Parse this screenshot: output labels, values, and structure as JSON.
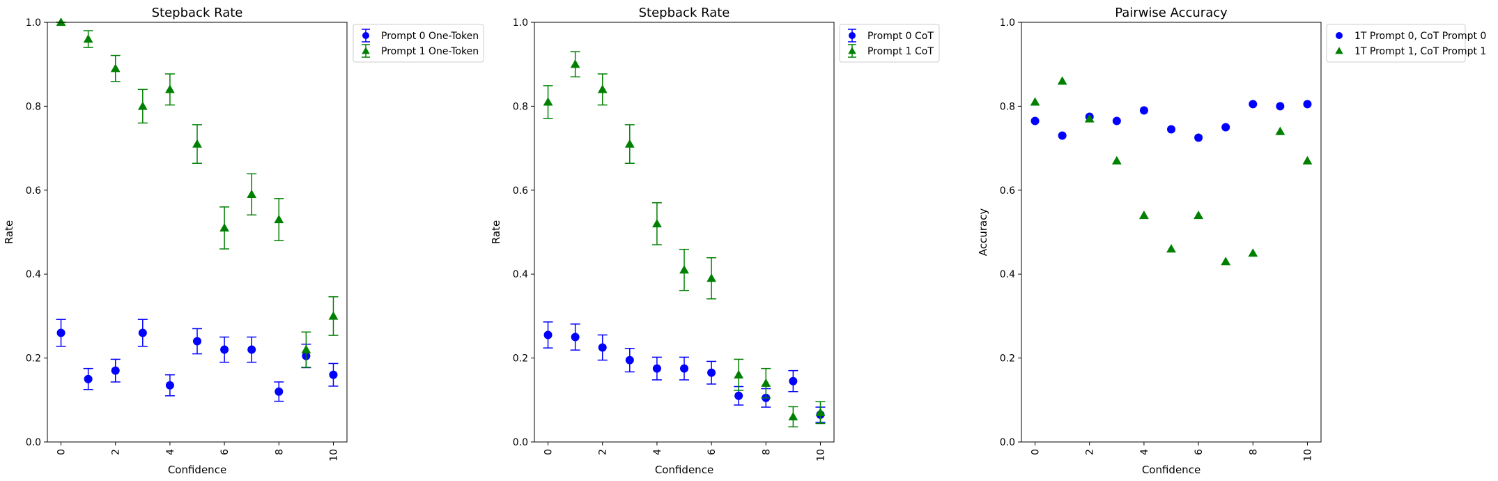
{
  "chart_data": [
    {
      "type": "scatter",
      "title": "Stepback Rate",
      "xlabel": "Confidence",
      "ylabel": "Rate",
      "xlim": [
        -0.5,
        10.5
      ],
      "ylim": [
        0,
        1
      ],
      "xticks": [
        0,
        2,
        4,
        6,
        8,
        10
      ],
      "yticks": [
        0.0,
        0.2,
        0.4,
        0.6,
        0.8,
        1.0
      ],
      "grid": false,
      "legend_position": "outside upper right",
      "series": [
        {
          "name": "Prompt 0 One-Token",
          "color": "#0000ff",
          "marker": "circle",
          "x": [
            0,
            1,
            2,
            3,
            4,
            5,
            6,
            7,
            8,
            9,
            10
          ],
          "y": [
            0.26,
            0.15,
            0.17,
            0.26,
            0.135,
            0.24,
            0.22,
            0.22,
            0.12,
            0.205,
            0.16
          ],
          "yerr": [
            0.032,
            0.025,
            0.027,
            0.032,
            0.025,
            0.03,
            0.03,
            0.03,
            0.023,
            0.028,
            0.027
          ]
        },
        {
          "name": "Prompt 1 One-Token",
          "color": "#008000",
          "marker": "triangle",
          "x": [
            0,
            1,
            2,
            3,
            4,
            5,
            6,
            7,
            8,
            9,
            10
          ],
          "y": [
            1.0,
            0.96,
            0.89,
            0.8,
            0.84,
            0.71,
            0.51,
            0.59,
            0.53,
            0.22,
            0.3
          ],
          "yerr": [
            0.0,
            0.02,
            0.031,
            0.04,
            0.037,
            0.046,
            0.05,
            0.049,
            0.05,
            0.042,
            0.046
          ]
        }
      ]
    },
    {
      "type": "scatter",
      "title": "Stepback Rate",
      "xlabel": "Confidence",
      "ylabel": "Rate",
      "xlim": [
        -0.5,
        10.5
      ],
      "ylim": [
        0,
        1
      ],
      "xticks": [
        0,
        2,
        4,
        6,
        8,
        10
      ],
      "yticks": [
        0.0,
        0.2,
        0.4,
        0.6,
        0.8,
        1.0
      ],
      "grid": false,
      "legend_position": "outside upper right",
      "series": [
        {
          "name": "Prompt 0 CoT",
          "color": "#0000ff",
          "marker": "circle",
          "x": [
            0,
            1,
            2,
            3,
            4,
            5,
            6,
            7,
            8,
            9,
            10
          ],
          "y": [
            0.255,
            0.25,
            0.225,
            0.195,
            0.175,
            0.175,
            0.165,
            0.11,
            0.105,
            0.145,
            0.065
          ],
          "yerr": [
            0.031,
            0.031,
            0.03,
            0.028,
            0.027,
            0.027,
            0.027,
            0.022,
            0.022,
            0.025,
            0.018
          ]
        },
        {
          "name": "Prompt 1 CoT",
          "color": "#008000",
          "marker": "triangle",
          "x": [
            0,
            1,
            2,
            3,
            4,
            5,
            6,
            7,
            8,
            9,
            10
          ],
          "y": [
            0.81,
            0.9,
            0.84,
            0.71,
            0.52,
            0.41,
            0.39,
            0.16,
            0.14,
            0.06,
            0.07
          ],
          "yerr": [
            0.039,
            0.03,
            0.037,
            0.046,
            0.05,
            0.049,
            0.049,
            0.037,
            0.035,
            0.024,
            0.026
          ]
        }
      ]
    },
    {
      "type": "scatter",
      "title": "Pairwise Accuracy",
      "xlabel": "Confidence",
      "ylabel": "Accuracy",
      "xlim": [
        -0.5,
        10.5
      ],
      "ylim": [
        0,
        1
      ],
      "xticks": [
        0,
        2,
        4,
        6,
        8,
        10
      ],
      "yticks": [
        0.0,
        0.2,
        0.4,
        0.6,
        0.8,
        1.0
      ],
      "grid": false,
      "legend_position": "outside upper right",
      "series": [
        {
          "name": "1T Prompt 0, CoT Prompt 0",
          "color": "#0000ff",
          "marker": "circle",
          "x": [
            0,
            1,
            2,
            3,
            4,
            5,
            6,
            7,
            8,
            9,
            10
          ],
          "y": [
            0.765,
            0.73,
            0.775,
            0.765,
            0.79,
            0.745,
            0.725,
            0.75,
            0.805,
            0.8,
            0.805
          ]
        },
        {
          "name": "1T Prompt 1, CoT Prompt 1",
          "color": "#008000",
          "marker": "triangle",
          "x": [
            0,
            1,
            2,
            3,
            4,
            5,
            6,
            7,
            8,
            9,
            10
          ],
          "y": [
            0.81,
            0.86,
            0.77,
            0.67,
            0.54,
            0.46,
            0.54,
            0.43,
            0.45,
            0.74,
            0.67
          ]
        }
      ]
    }
  ]
}
